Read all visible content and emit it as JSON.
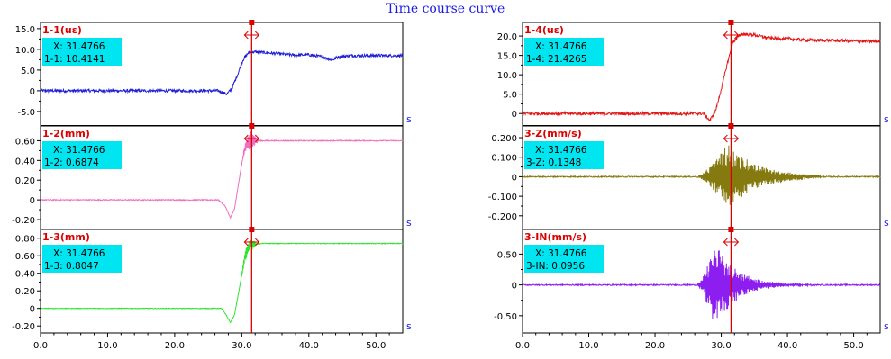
{
  "page_title": "Time course curve",
  "x_unit": "s",
  "cursor_x_label": "X: 31.4766",
  "colors": {
    "axis_black": "#000000",
    "cursor_red": "#dd0000",
    "readout_bg": "#00e5f0",
    "label_red": "#dd0000",
    "tick_text": "#000000",
    "unit_text": "#1a1ae6"
  },
  "chart_data": [
    {
      "type": "line",
      "id": "1-1",
      "column": "left",
      "row": 0,
      "title": "1-1(uε)",
      "readout": "1-1: 10.4141",
      "color": "#1f1fd6",
      "yticks": [
        "15.0",
        "10.0",
        "5.0",
        "0",
        "-5.0"
      ],
      "ytick_values": [
        15,
        10,
        5,
        0,
        -5
      ],
      "ylim": [
        -8.5,
        16.5
      ],
      "xlim": [
        0,
        54
      ],
      "xticks": [
        0,
        10,
        20,
        30,
        40,
        50
      ],
      "cursor_x": 31.4766,
      "profile": [
        [
          0,
          0
        ],
        [
          26.5,
          0
        ],
        [
          27.8,
          -0.8
        ],
        [
          28.5,
          0.5
        ],
        [
          29.4,
          4
        ],
        [
          30.2,
          7.5
        ],
        [
          31,
          9.2
        ],
        [
          32,
          9.4
        ],
        [
          35,
          9
        ],
        [
          38,
          8.6
        ],
        [
          40,
          8.7
        ],
        [
          42,
          8.2
        ],
        [
          43.5,
          7.4
        ],
        [
          44.3,
          8.1
        ],
        [
          46,
          8.5
        ],
        [
          50,
          8.5
        ],
        [
          54,
          8.5
        ]
      ],
      "noise": 0.35
    },
    {
      "type": "line",
      "id": "1-2",
      "column": "left",
      "row": 1,
      "title": "1-2(mm)",
      "readout": "1-2: 0.6874",
      "color": "#ee6fc0",
      "yticks": [
        "0.60",
        "0.40",
        "0.20",
        "0",
        "-0.20"
      ],
      "ytick_values": [
        0.6,
        0.4,
        0.2,
        0,
        -0.2
      ],
      "ylim": [
        -0.3,
        0.75
      ],
      "xlim": [
        0,
        54
      ],
      "xticks": [
        0,
        10,
        20,
        30,
        40,
        50
      ],
      "cursor_x": 31.4766,
      "profile": [
        [
          0,
          0
        ],
        [
          26.5,
          0
        ],
        [
          27.5,
          -0.06
        ],
        [
          28.3,
          -0.18
        ],
        [
          28.9,
          -0.1
        ],
        [
          29.6,
          0.2
        ],
        [
          30.3,
          0.48
        ],
        [
          31,
          0.6
        ],
        [
          33,
          0.6
        ],
        [
          54,
          0.6
        ]
      ],
      "noise": 0.005,
      "burst": {
        "start": 30.0,
        "end": 32.5,
        "amp": 0.09
      }
    },
    {
      "type": "line",
      "id": "1-3",
      "column": "left",
      "row": 2,
      "title": "1-3(mm)",
      "readout": "1-3: 0.8047",
      "color": "#2ee62e",
      "yticks": [
        "0.80",
        "0.60",
        "0.40",
        "0.20",
        "0",
        "-0.20"
      ],
      "ytick_values": [
        0.8,
        0.6,
        0.4,
        0.2,
        0,
        -0.2
      ],
      "ylim": [
        -0.28,
        0.9
      ],
      "xlim": [
        0,
        54
      ],
      "xticks": [
        0,
        10,
        20,
        30,
        40,
        50
      ],
      "cursor_x": 31.4766,
      "profile": [
        [
          0,
          0
        ],
        [
          27,
          0
        ],
        [
          27.7,
          -0.08
        ],
        [
          28.3,
          -0.16
        ],
        [
          28.9,
          -0.08
        ],
        [
          29.7,
          0.25
        ],
        [
          30.5,
          0.6
        ],
        [
          31.2,
          0.72
        ],
        [
          33,
          0.74
        ],
        [
          54,
          0.74
        ]
      ],
      "noise": 0.004,
      "burst": {
        "start": 29.8,
        "end": 32.3,
        "amp": 0.08
      }
    },
    {
      "type": "line",
      "id": "1-4",
      "column": "right",
      "row": 0,
      "title": "1-4(uε)",
      "readout": "1-4: 21.4265",
      "color": "#e21818",
      "yticks": [
        "20.0",
        "15.0",
        "10.0",
        "5.0",
        "0"
      ],
      "ytick_values": [
        20,
        15,
        10,
        5,
        0
      ],
      "ylim": [
        -3.2,
        23.5
      ],
      "xlim": [
        0,
        54
      ],
      "xticks": [
        0,
        10,
        20,
        30,
        40,
        50
      ],
      "cursor_x": 31.4766,
      "profile": [
        [
          0,
          0
        ],
        [
          26,
          0
        ],
        [
          27.3,
          0
        ],
        [
          28.3,
          -1.8
        ],
        [
          29.2,
          1
        ],
        [
          30.1,
          7
        ],
        [
          31,
          13.5
        ],
        [
          31.8,
          18.5
        ],
        [
          33,
          20.5
        ],
        [
          35,
          20.3
        ],
        [
          37,
          19.5
        ],
        [
          40,
          19.3
        ],
        [
          43,
          18.9
        ],
        [
          46,
          18.9
        ],
        [
          50,
          18.7
        ],
        [
          54,
          18.6
        ]
      ],
      "noise": 0.4
    },
    {
      "type": "line",
      "id": "3-Z",
      "column": "right",
      "row": 1,
      "title": "3-Z(mm/s)",
      "readout": "3-Z: 0.1348",
      "color": "#857a10",
      "yticks": [
        "0.200",
        "0.100",
        "0",
        "-0.100",
        "-0.200"
      ],
      "ytick_values": [
        0.2,
        0.1,
        0,
        -0.1,
        -0.2
      ],
      "ylim": [
        -0.27,
        0.26
      ],
      "xlim": [
        0,
        54
      ],
      "xticks": [
        0,
        10,
        20,
        30,
        40,
        50
      ],
      "cursor_x": 31.4766,
      "profile": [
        [
          0,
          0
        ],
        [
          54,
          0
        ]
      ],
      "noise": 0.003,
      "burst": {
        "start": 26.3,
        "end": 45,
        "amp": 0.17,
        "peak": 31,
        "decay": 4.5
      }
    },
    {
      "type": "line",
      "id": "3-IN",
      "column": "right",
      "row": 2,
      "title": "3-IN(mm/s)",
      "readout": "3-IN: 0.0956",
      "color": "#8c1ef0",
      "yticks": [
        "0.50",
        "0",
        "-0.50"
      ],
      "ytick_values": [
        0.5,
        0,
        -0.5
      ],
      "ylim": [
        -0.78,
        0.9
      ],
      "xlim": [
        0,
        54
      ],
      "xticks": [
        0,
        10,
        20,
        30,
        40,
        50
      ],
      "cursor_x": 31.4766,
      "profile": [
        [
          0,
          0
        ],
        [
          54,
          0
        ]
      ],
      "noise": 0.01,
      "burst": {
        "start": 26.3,
        "end": 45,
        "amp": 0.7,
        "peak": 29,
        "decay": 3.2
      }
    }
  ]
}
